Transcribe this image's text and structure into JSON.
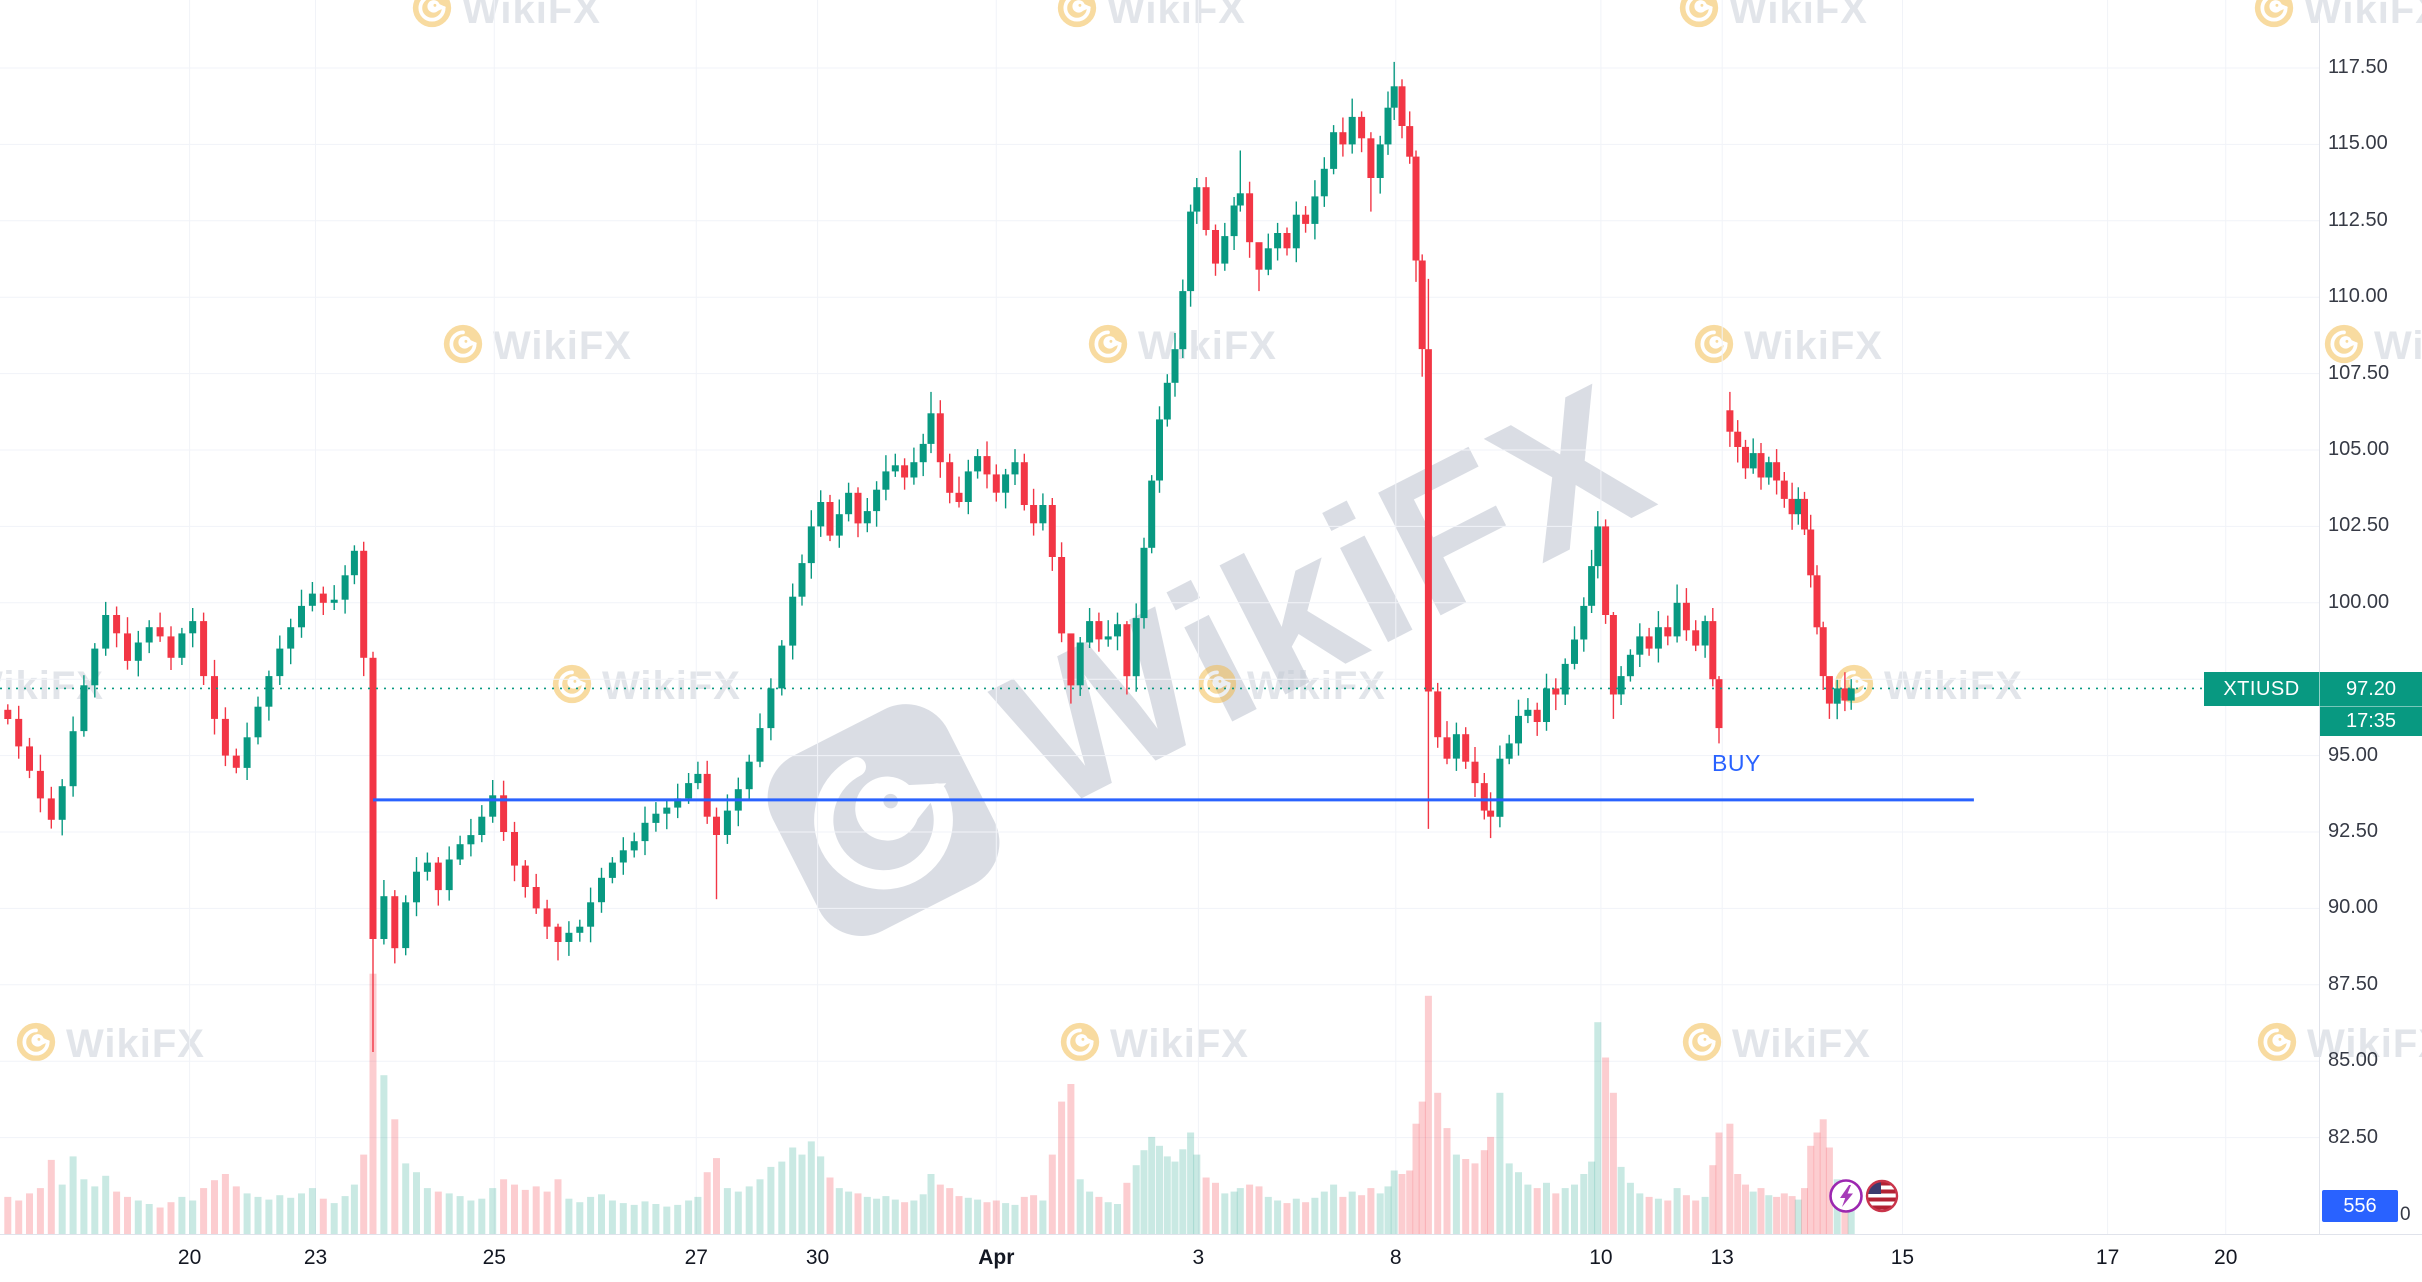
{
  "watermark": {
    "brand": "WikiFX"
  },
  "event_icons": [
    "lightning-icon",
    "us-flag-icon"
  ],
  "chart_data": {
    "type": "candlestick",
    "symbol": "XTIUSD",
    "last_price": "97.20",
    "last_price_value": 97.2,
    "timeframe_countdown": "17:35",
    "price_labels": [
      "117.50",
      "115.00",
      "112.50",
      "110.00",
      "107.50",
      "105.00",
      "102.50",
      "100.00",
      "95.00",
      "92.50",
      "90.00",
      "87.50",
      "85.00",
      "82.50"
    ],
    "y_axis": {
      "min": 82.5,
      "max": 117.5,
      "step": 2.5
    },
    "x_range": [
      0,
      1492
    ],
    "x_ticks": [
      {
        "label": "20",
        "x": 122
      },
      {
        "label": "23",
        "x": 203
      },
      {
        "label": "25",
        "x": 318
      },
      {
        "label": "27",
        "x": 448
      },
      {
        "label": "30",
        "x": 526
      },
      {
        "label": "Apr",
        "x": 641,
        "bold": true
      },
      {
        "label": "3",
        "x": 771
      },
      {
        "label": "8",
        "x": 898
      },
      {
        "label": "10",
        "x": 1030
      },
      {
        "label": "13",
        "x": 1108
      },
      {
        "label": "15",
        "x": 1224
      },
      {
        "label": "17",
        "x": 1356
      },
      {
        "label": "20",
        "x": 1432
      }
    ],
    "buy_line": {
      "label": "BUY",
      "price": 93.55,
      "x_start": 240,
      "x_end": 1270
    },
    "volume": {
      "last_value": "556",
      "zero_label": "0",
      "max_scale": 3400
    },
    "first_open": 96.5,
    "candles_format": "[x, close, volume, high(optional), low(optional), open(optional; default = previous close)]",
    "candles": [
      [
        5,
        96.2,
        420
      ],
      [
        12,
        95.3,
        380
      ],
      [
        19,
        94.5,
        460
      ],
      [
        26,
        93.6,
        520
      ],
      [
        33,
        92.9,
        840
      ],
      [
        40,
        94.0,
        560
      ],
      [
        47,
        95.8,
        880
      ],
      [
        54,
        97.3,
        620
      ],
      [
        61,
        98.5,
        540
      ],
      [
        68,
        99.6,
        660
      ],
      [
        75,
        99.0,
        480
      ],
      [
        82,
        98.1,
        420
      ],
      [
        89,
        98.7,
        380
      ],
      [
        96,
        99.2,
        340
      ],
      [
        103,
        98.9,
        300
      ],
      [
        110,
        98.2,
        360
      ],
      [
        117,
        99.0,
        420
      ],
      [
        124,
        99.4,
        380
      ],
      [
        131,
        97.6,
        520
      ],
      [
        138,
        96.2,
        610
      ],
      [
        145,
        95.0,
        680
      ],
      [
        152,
        94.6,
        540
      ],
      [
        159,
        95.6,
        460
      ],
      [
        166,
        96.6,
        420
      ],
      [
        173,
        97.6,
        390
      ],
      [
        180,
        98.5,
        440
      ],
      [
        187,
        99.2,
        410
      ],
      [
        194,
        99.9,
        460
      ],
      [
        201,
        100.3,
        520
      ],
      [
        208,
        100.0,
        400
      ],
      [
        215,
        100.1,
        350
      ],
      [
        222,
        100.9,
        430
      ],
      [
        228,
        101.7,
        560
      ],
      [
        234,
        98.2,
        900,
        102.0,
        97.6
      ],
      [
        240,
        89.0,
        2950,
        98.4,
        85.3
      ],
      [
        247,
        90.4,
        1800
      ],
      [
        254,
        88.7,
        1300,
        90.6,
        88.2
      ],
      [
        261,
        90.2,
        800
      ],
      [
        268,
        91.2,
        700
      ],
      [
        275,
        91.5,
        520
      ],
      [
        282,
        90.6,
        480
      ],
      [
        289,
        91.6,
        460
      ],
      [
        296,
        92.1,
        430
      ],
      [
        303,
        92.4,
        380
      ],
      [
        310,
        93.0,
        400
      ],
      [
        317,
        93.7,
        520,
        94.2,
        92.8
      ],
      [
        324,
        92.5,
        620
      ],
      [
        331,
        91.4,
        560
      ],
      [
        338,
        90.7,
        500
      ],
      [
        345,
        90.0,
        540
      ],
      [
        352,
        89.4,
        480
      ],
      [
        359,
        88.9,
        620,
        89.5,
        88.3
      ],
      [
        366,
        89.2,
        400
      ],
      [
        373,
        89.4,
        360
      ],
      [
        380,
        90.2,
        420
      ],
      [
        387,
        91.0,
        450
      ],
      [
        394,
        91.5,
        380
      ],
      [
        401,
        91.9,
        350
      ],
      [
        408,
        92.2,
        330
      ],
      [
        415,
        92.8,
        370
      ],
      [
        422,
        93.1,
        340
      ],
      [
        429,
        93.3,
        310
      ],
      [
        436,
        93.6,
        330
      ],
      [
        443,
        94.1,
        380
      ],
      [
        449,
        94.4,
        420,
        94.8,
        93.9
      ],
      [
        455,
        93.0,
        700
      ],
      [
        461,
        92.4,
        860,
        93.3,
        90.3
      ],
      [
        468,
        93.2,
        520
      ],
      [
        475,
        93.9,
        480
      ],
      [
        482,
        94.8,
        540
      ],
      [
        489,
        95.9,
        620
      ],
      [
        496,
        97.2,
        760
      ],
      [
        503,
        98.6,
        820
      ],
      [
        510,
        100.2,
        980
      ],
      [
        516,
        101.3,
        900
      ],
      [
        522,
        102.5,
        1050
      ],
      [
        528,
        103.3,
        880
      ],
      [
        534,
        102.2,
        640
      ],
      [
        540,
        102.9,
        520
      ],
      [
        546,
        103.6,
        480
      ],
      [
        552,
        102.6,
        460
      ],
      [
        558,
        103.0,
        420
      ],
      [
        564,
        103.7,
        400
      ],
      [
        570,
        104.3,
        430
      ],
      [
        576,
        104.5,
        390
      ],
      [
        582,
        104.1,
        360
      ],
      [
        588,
        104.6,
        380
      ],
      [
        594,
        105.2,
        450
      ],
      [
        599,
        106.2,
        680,
        106.9,
        104.9
      ],
      [
        605,
        104.6,
        560
      ],
      [
        611,
        103.6,
        520
      ],
      [
        617,
        103.3,
        430
      ],
      [
        623,
        104.3,
        410
      ],
      [
        629,
        104.8,
        390
      ],
      [
        635,
        104.2,
        360
      ],
      [
        641,
        103.6,
        380
      ],
      [
        647,
        104.2,
        350
      ],
      [
        653,
        104.6,
        330
      ],
      [
        659,
        103.2,
        420
      ],
      [
        665,
        102.6,
        440
      ],
      [
        671,
        103.2,
        380
      ],
      [
        677,
        101.5,
        900
      ],
      [
        683,
        99.0,
        1500
      ],
      [
        689,
        97.3,
        1700,
        97.9,
        96.7
      ],
      [
        695,
        98.7,
        620
      ],
      [
        701,
        99.4,
        480
      ],
      [
        707,
        98.8,
        420
      ],
      [
        713,
        98.9,
        360
      ],
      [
        719,
        99.3,
        340
      ],
      [
        725,
        97.6,
        580,
        99.4,
        97.0
      ],
      [
        731,
        99.5,
        780
      ],
      [
        736,
        101.8,
        950
      ],
      [
        741,
        104.0,
        1100
      ],
      [
        746,
        106.0,
        1000
      ],
      [
        751,
        107.2,
        880
      ],
      [
        756,
        108.3,
        820
      ],
      [
        761,
        110.2,
        960
      ],
      [
        766,
        112.8,
        1150
      ],
      [
        770,
        113.6,
        900,
        113.9,
        112.4
      ],
      [
        776,
        112.2,
        640
      ],
      [
        782,
        111.1,
        580
      ],
      [
        788,
        112.0,
        460
      ],
      [
        794,
        113.0,
        480
      ],
      [
        798,
        113.4,
        520,
        114.8,
        112.8
      ],
      [
        804,
        111.8,
        560
      ],
      [
        810,
        110.9,
        540,
        111.6,
        110.2
      ],
      [
        816,
        111.6,
        420
      ],
      [
        822,
        112.1,
        380
      ],
      [
        828,
        111.6,
        350
      ],
      [
        834,
        112.7,
        400
      ],
      [
        840,
        112.4,
        360
      ],
      [
        846,
        113.3,
        410
      ],
      [
        852,
        114.2,
        480
      ],
      [
        858,
        115.4,
        560
      ],
      [
        864,
        115.0,
        420
      ],
      [
        870,
        115.9,
        480,
        116.5,
        114.7
      ],
      [
        876,
        115.2,
        440
      ],
      [
        882,
        113.9,
        520,
        115.4,
        112.8
      ],
      [
        888,
        115.0,
        460
      ],
      [
        893,
        116.2,
        540
      ],
      [
        897,
        116.9,
        720,
        117.7,
        115.8
      ],
      [
        902,
        115.6,
        680
      ],
      [
        907,
        114.6,
        720
      ],
      [
        911,
        111.2,
        1250,
        114.8,
        110.5
      ],
      [
        915,
        108.3,
        1500,
        111.4,
        107.4
      ],
      [
        919,
        97.1,
        2700,
        110.6,
        92.6
      ],
      [
        925,
        95.6,
        1600
      ],
      [
        931,
        94.9,
        1200
      ],
      [
        937,
        95.7,
        900
      ],
      [
        943,
        94.8,
        850
      ],
      [
        949,
        94.1,
        800
      ],
      [
        955,
        93.2,
        950
      ],
      [
        959,
        93.0,
        1100,
        93.8,
        92.3
      ],
      [
        965,
        94.9,
        1600
      ],
      [
        971,
        95.4,
        800
      ],
      [
        977,
        96.3,
        700
      ],
      [
        983,
        96.5,
        560
      ],
      [
        989,
        96.1,
        520
      ],
      [
        995,
        97.2,
        580
      ],
      [
        1001,
        97.0,
        460
      ],
      [
        1007,
        98.0,
        520
      ],
      [
        1013,
        98.8,
        560
      ],
      [
        1019,
        99.9,
        680
      ],
      [
        1024,
        101.2,
        820
      ],
      [
        1028,
        102.5,
        2400,
        103.0,
        100.8
      ],
      [
        1033,
        99.6,
        2000
      ],
      [
        1038,
        97.0,
        1600,
        99.7,
        96.2
      ],
      [
        1043,
        97.6,
        760
      ],
      [
        1049,
        98.3,
        580
      ],
      [
        1055,
        98.9,
        460
      ],
      [
        1061,
        98.5,
        420
      ],
      [
        1067,
        99.2,
        400
      ],
      [
        1073,
        98.9,
        380
      ],
      [
        1079,
        100.0,
        520,
        100.6,
        98.7
      ],
      [
        1085,
        99.1,
        440
      ],
      [
        1091,
        98.6,
        380
      ],
      [
        1097,
        99.4,
        420
      ],
      [
        1102,
        97.5,
        780
      ],
      [
        1106,
        95.9,
        1150,
        97.6,
        95.4
      ],
      [
        1113,
        105.6,
        1250,
        106.9,
        105.1,
        106.3
      ],
      [
        1118,
        105.1,
        680
      ],
      [
        1123,
        104.4,
        560
      ],
      [
        1128,
        104.9,
        480
      ],
      [
        1133,
        104.1,
        520
      ],
      [
        1138,
        104.6,
        440
      ],
      [
        1143,
        104.0,
        420
      ],
      [
        1148,
        103.4,
        460
      ],
      [
        1153,
        102.9,
        430
      ],
      [
        1157,
        103.4,
        390
      ],
      [
        1161,
        102.4,
        520
      ],
      [
        1165,
        100.9,
        1000
      ],
      [
        1169,
        99.2,
        1150
      ],
      [
        1173,
        97.6,
        1300
      ],
      [
        1177,
        96.7,
        980,
        97.3,
        96.2
      ],
      [
        1182,
        97.2,
        620
      ],
      [
        1187,
        96.8,
        540
      ],
      [
        1191,
        97.2,
        556,
        97.5,
        96.5
      ]
    ],
    "colors": {
      "up": "#089981",
      "down": "#F23645",
      "volume_up": "rgba(8,153,129,0.22)",
      "volume_down": "rgba(242,54,69,0.25)",
      "grid": "#f1f3f8",
      "axis_text": "#363a45",
      "buy": "#2962FF",
      "price_badge_bg": "#089981",
      "volume_badge_bg": "#2962FF"
    }
  }
}
